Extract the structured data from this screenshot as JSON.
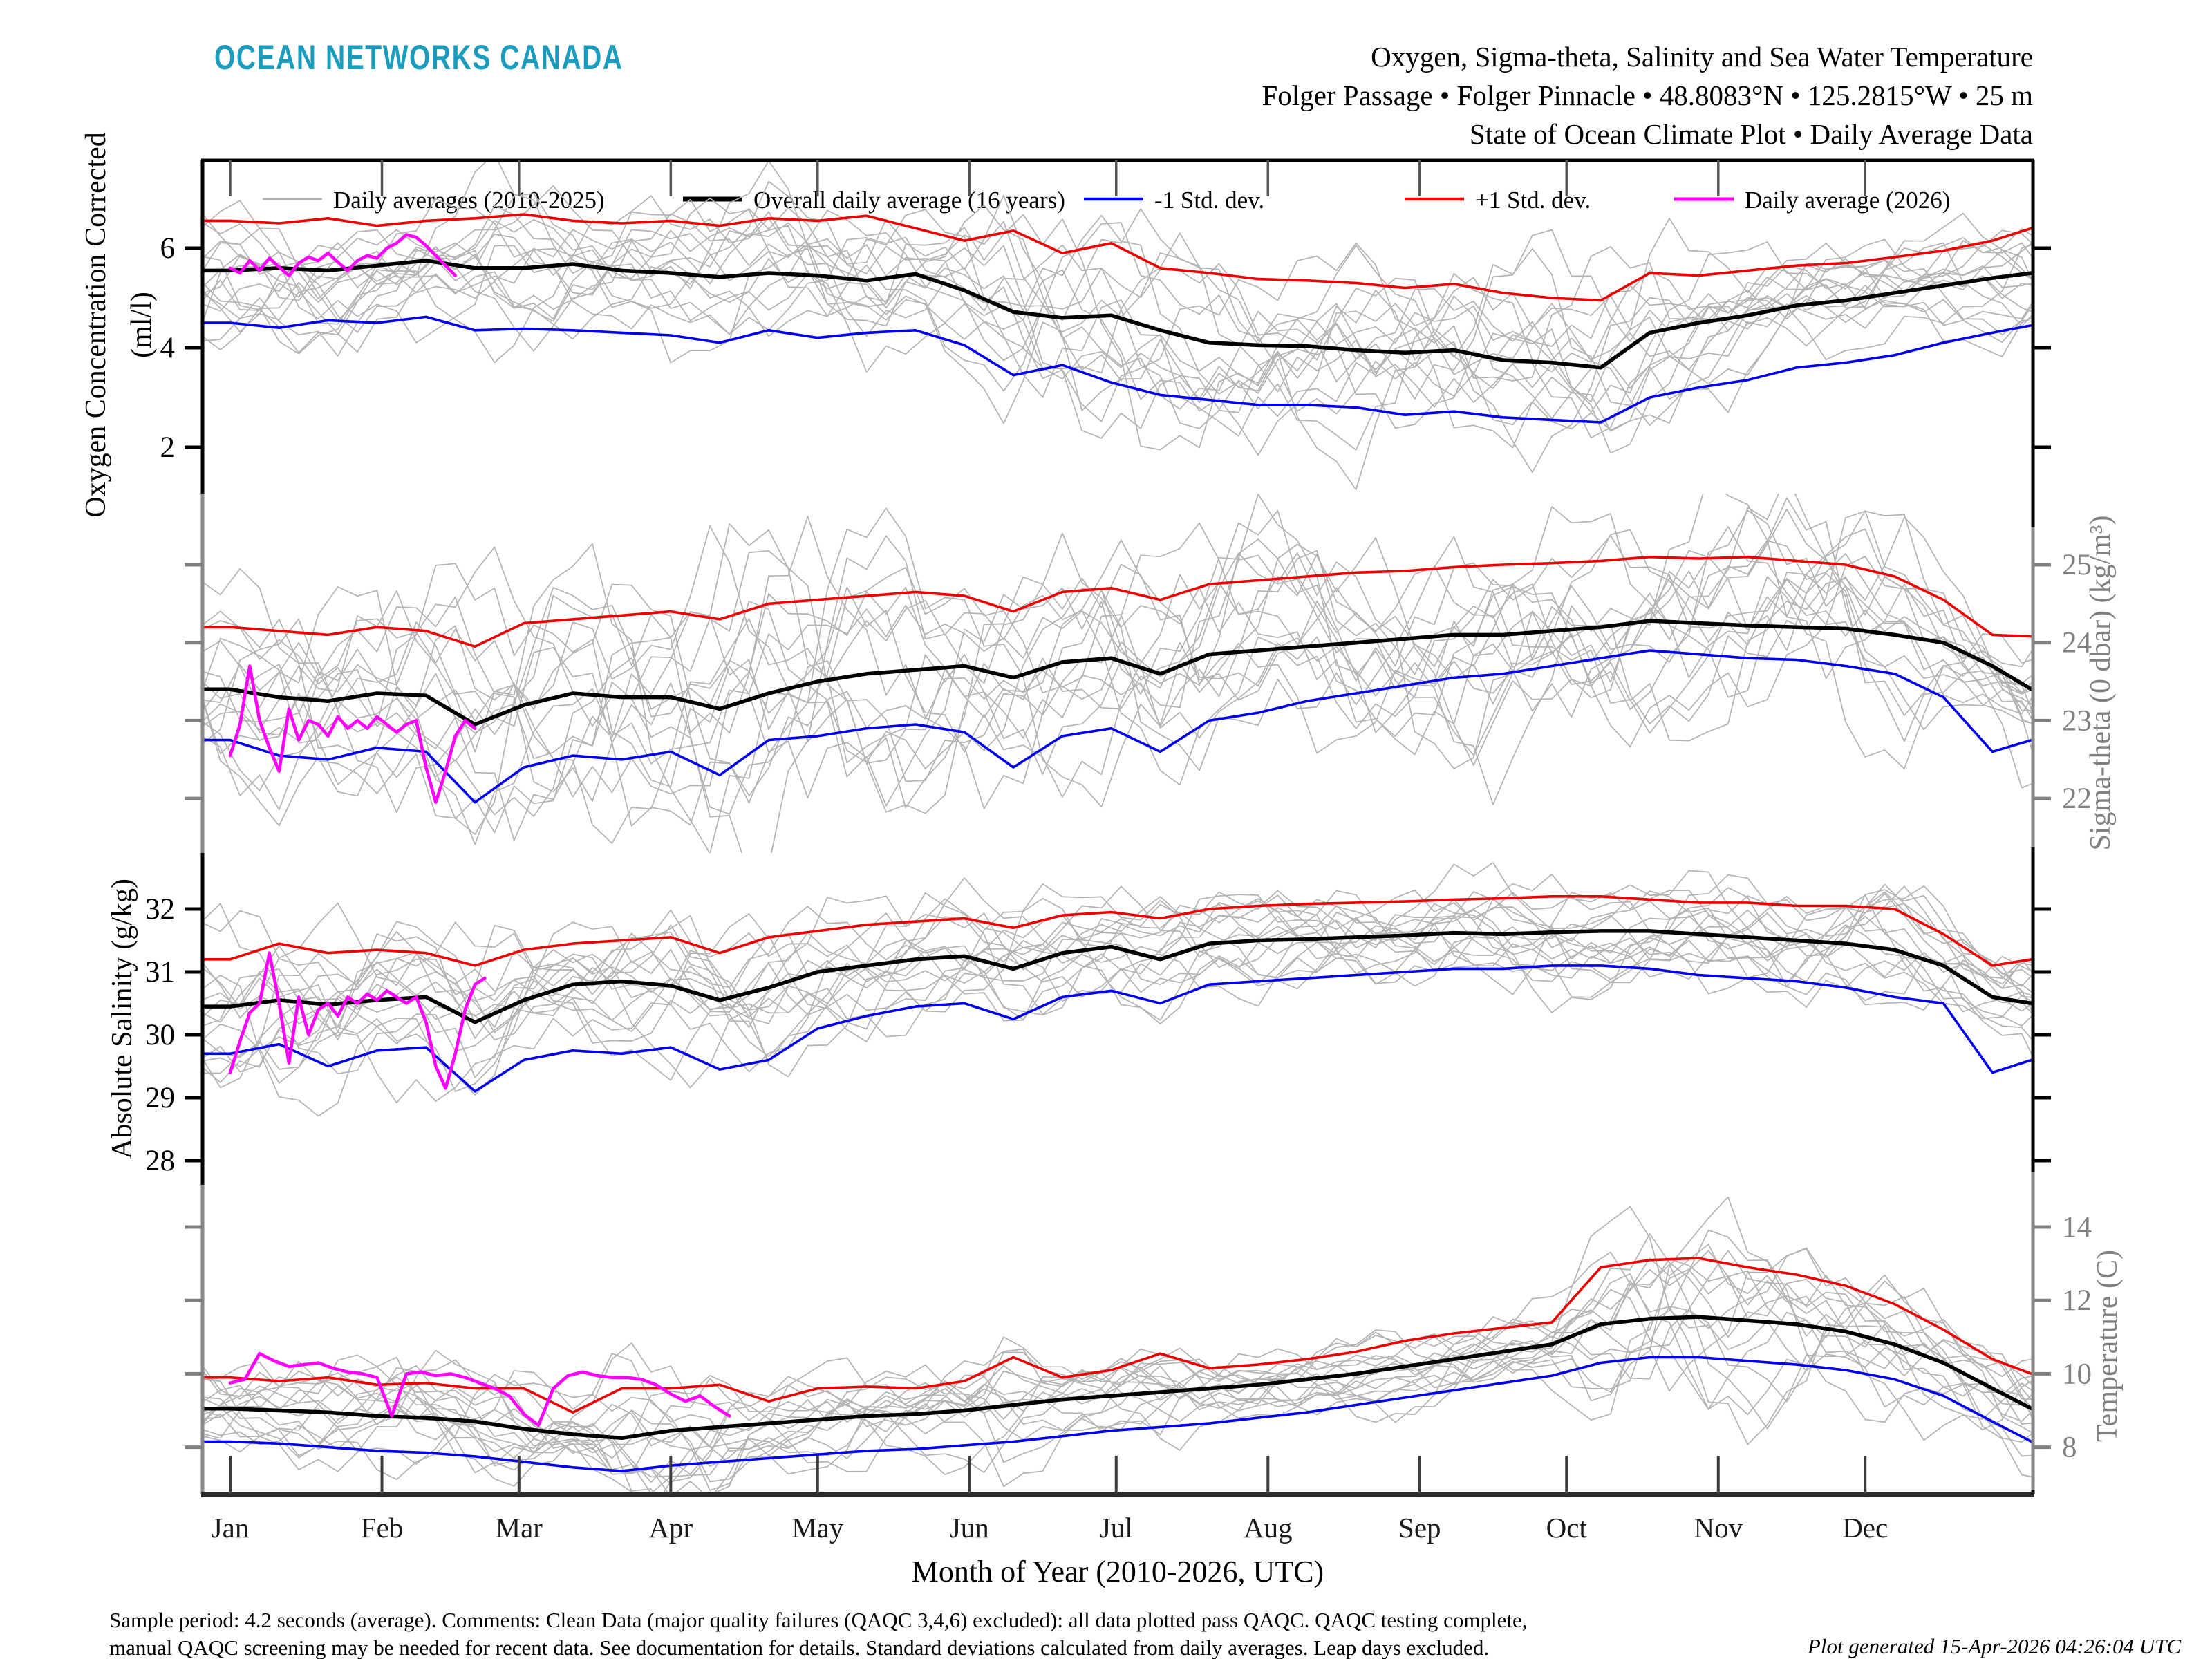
{
  "header": {
    "logo": "OCEAN NETWORKS CANADA",
    "title_line1": "Oxygen, Sigma-theta, Salinity and Sea Water Temperature",
    "title_line2": "Folger Passage • Folger Pinnacle • 48.8083°N • 125.2815°W • 25 m",
    "title_line3": "State of Ocean Climate Plot • Daily Average Data"
  },
  "footer": {
    "note_line1": "Sample period: 4.2 seconds (average).  Comments: Clean Data (major quality failures (QAQC 3,4,6) excluded): all data plotted pass QAQC.  QAQC testing complete,",
    "note_line2": "manual QAQC screening may be needed for recent data.  See documentation for details.  Standard deviations calculated from daily averages.  Leap days excluded.",
    "generated": "Plot generated 15-Apr-2026 04:26:04 UTC"
  },
  "colors": {
    "logo_teal": "#1B9BBE",
    "gray_years": "#b3b3b3",
    "mean_black": "#000000",
    "minus_sd_blue": "#0000ee",
    "plus_sd_red": "#ee0000",
    "current_magenta": "#ff00ff",
    "axis_gray": "#808080",
    "month_tick": "#3c3c3c",
    "bottom_spine": "#2b2b2b"
  },
  "legend": [
    {
      "label": "Daily averages (2010-2025)",
      "color": "#b3b3b3",
      "width": 3
    },
    {
      "label": "Overall daily average (16 years)",
      "color": "#000000",
      "width": 7
    },
    {
      "label": "-1 Std. dev.",
      "color": "#0000ee",
      "width": 4.5
    },
    {
      "label": "+1 Std. dev.",
      "color": "#ee0000",
      "width": 4.5
    },
    {
      "label": "Daily average (2026)",
      "color": "#ff00ff",
      "width": 5
    }
  ],
  "chart_data": {
    "type": "line",
    "title": "Oxygen, Sigma-theta, Salinity and Sea Water Temperature — State of Ocean Climate Plot — Daily Average Data",
    "background_years": {
      "label": "Daily averages (2010-2025)",
      "count": 16
    },
    "x_axis": {
      "label": "Month of Year (2010-2026, UTC)",
      "months": [
        "Jan",
        "Feb",
        "Mar",
        "Apr",
        "May",
        "Jun",
        "Jul",
        "Aug",
        "Sep",
        "Oct",
        "Nov",
        "Dec"
      ],
      "month_start_days": [
        0,
        31,
        59,
        90,
        120,
        151,
        181,
        212,
        243,
        273,
        304,
        334
      ],
      "day_span": [
        -6,
        370
      ]
    },
    "series_days": [
      0,
      10,
      20,
      30,
      40,
      50,
      60,
      70,
      80,
      90,
      100,
      110,
      120,
      130,
      140,
      150,
      160,
      170,
      180,
      190,
      200,
      210,
      220,
      230,
      240,
      250,
      260,
      270,
      280,
      290,
      300,
      310,
      320,
      330,
      340,
      350,
      360,
      368
    ],
    "panels": [
      {
        "id": "oxygen",
        "ylabel_line1": "Oxygen Concentration Corrected",
        "ylabel_line2": "(ml/l)",
        "label_side": "left",
        "axis_color": "#000000",
        "ylim": [
          1.2,
          7.6
        ],
        "ticks": [
          {
            "v": 6,
            "label": "6"
          },
          {
            "v": 4,
            "label": "4"
          },
          {
            "v": 2,
            "label": "2"
          }
        ],
        "mean": [
          5.55,
          5.6,
          5.55,
          5.65,
          5.75,
          5.6,
          5.6,
          5.68,
          5.55,
          5.5,
          5.42,
          5.5,
          5.45,
          5.35,
          5.48,
          5.15,
          4.72,
          4.6,
          4.65,
          4.35,
          4.1,
          4.05,
          4.03,
          3.95,
          3.9,
          3.95,
          3.75,
          3.7,
          3.6,
          4.3,
          4.5,
          4.65,
          4.85,
          4.95,
          5.1,
          5.25,
          5.4,
          5.5
        ],
        "plus_sd": [
          6.55,
          6.5,
          6.6,
          6.45,
          6.55,
          6.6,
          6.68,
          6.55,
          6.5,
          6.55,
          6.45,
          6.6,
          6.55,
          6.65,
          6.4,
          6.15,
          6.35,
          5.9,
          6.1,
          5.6,
          5.5,
          5.38,
          5.35,
          5.3,
          5.2,
          5.28,
          5.1,
          5.0,
          4.95,
          5.5,
          5.45,
          5.55,
          5.65,
          5.7,
          5.82,
          5.95,
          6.15,
          6.4
        ],
        "minus_sd": [
          4.5,
          4.4,
          4.55,
          4.5,
          4.62,
          4.35,
          4.38,
          4.35,
          4.3,
          4.25,
          4.1,
          4.35,
          4.2,
          4.3,
          4.35,
          4.05,
          3.45,
          3.65,
          3.3,
          3.05,
          2.95,
          2.85,
          2.85,
          2.8,
          2.65,
          2.72,
          2.6,
          2.55,
          2.5,
          3.0,
          3.2,
          3.35,
          3.6,
          3.7,
          3.85,
          4.1,
          4.3,
          4.45
        ],
        "current_2026": {
          "day_step": 2,
          "day_start": 0,
          "values": [
            5.6,
            5.5,
            5.75,
            5.55,
            5.8,
            5.62,
            5.45,
            5.7,
            5.82,
            5.75,
            5.9,
            5.72,
            5.55,
            5.75,
            5.85,
            5.8,
            6.0,
            6.1,
            6.27,
            6.22,
            6.05,
            5.85,
            5.65,
            5.45
          ]
        }
      },
      {
        "id": "sigma_theta",
        "ylabel_line1": "Sigma-theta (0 dbar) (kg/m³)",
        "ylabel_line2": "",
        "label_side": "right",
        "axis_color": "#808080",
        "ylim": [
          21.6,
          25.6
        ],
        "ticks": [
          {
            "v": 25,
            "label": "25"
          },
          {
            "v": 24,
            "label": "24"
          },
          {
            "v": 23,
            "label": "23"
          },
          {
            "v": 22,
            "label": "22"
          }
        ],
        "mean": [
          23.4,
          23.3,
          23.25,
          23.35,
          23.32,
          22.95,
          23.2,
          23.35,
          23.3,
          23.3,
          23.15,
          23.35,
          23.5,
          23.6,
          23.65,
          23.7,
          23.55,
          23.75,
          23.8,
          23.6,
          23.85,
          23.9,
          23.95,
          24.0,
          24.05,
          24.1,
          24.1,
          24.15,
          24.2,
          24.28,
          24.25,
          24.22,
          24.2,
          24.18,
          24.1,
          24.0,
          23.7,
          23.4
        ],
        "plus_sd": [
          24.2,
          24.15,
          24.1,
          24.2,
          24.15,
          23.95,
          24.25,
          24.3,
          24.35,
          24.4,
          24.3,
          24.5,
          24.55,
          24.6,
          24.65,
          24.6,
          24.4,
          24.65,
          24.7,
          24.55,
          24.75,
          24.8,
          24.85,
          24.9,
          24.92,
          24.97,
          25.0,
          25.02,
          25.05,
          25.1,
          25.08,
          25.1,
          25.05,
          25.0,
          24.85,
          24.55,
          24.1,
          24.08
        ],
        "minus_sd": [
          22.75,
          22.55,
          22.5,
          22.65,
          22.6,
          21.95,
          22.4,
          22.55,
          22.5,
          22.6,
          22.3,
          22.75,
          22.8,
          22.9,
          22.95,
          22.85,
          22.4,
          22.8,
          22.9,
          22.6,
          23.0,
          23.1,
          23.25,
          23.35,
          23.45,
          23.55,
          23.6,
          23.7,
          23.8,
          23.9,
          23.85,
          23.8,
          23.78,
          23.7,
          23.6,
          23.3,
          22.6,
          22.75
        ],
        "current_2026": {
          "day_step": 2,
          "day_start": 0,
          "values": [
            22.55,
            22.95,
            23.7,
            23.0,
            22.65,
            22.35,
            23.15,
            22.75,
            23.0,
            22.95,
            22.8,
            23.05,
            22.9,
            23.0,
            22.9,
            23.05,
            22.95,
            22.85,
            22.95,
            23.0,
            22.4,
            21.95,
            22.35,
            22.8,
            23.0,
            22.9
          ]
        }
      },
      {
        "id": "salinity",
        "ylabel_line1": "Absolute Salinity (g/kg)",
        "ylabel_line2": "",
        "label_side": "left",
        "axis_color": "#000000",
        "ylim": [
          27.6,
          32.85
        ],
        "ticks": [
          {
            "v": 32,
            "label": "32"
          },
          {
            "v": 31,
            "label": "31"
          },
          {
            "v": 30,
            "label": "30"
          },
          {
            "v": 29,
            "label": "29"
          },
          {
            "v": 28,
            "label": "28"
          }
        ],
        "mean": [
          30.45,
          30.55,
          30.48,
          30.55,
          30.6,
          30.2,
          30.55,
          30.8,
          30.85,
          30.78,
          30.55,
          30.75,
          31.0,
          31.1,
          31.2,
          31.25,
          31.05,
          31.3,
          31.4,
          31.2,
          31.45,
          31.5,
          31.52,
          31.55,
          31.58,
          31.62,
          31.6,
          31.63,
          31.65,
          31.65,
          31.6,
          31.55,
          31.5,
          31.45,
          31.35,
          31.1,
          30.6,
          30.5
        ],
        "plus_sd": [
          31.2,
          31.45,
          31.3,
          31.35,
          31.3,
          31.1,
          31.35,
          31.45,
          31.5,
          31.55,
          31.3,
          31.55,
          31.65,
          31.75,
          31.8,
          31.85,
          31.7,
          31.9,
          31.95,
          31.85,
          32.0,
          32.05,
          32.08,
          32.1,
          32.12,
          32.15,
          32.17,
          32.2,
          32.2,
          32.15,
          32.1,
          32.1,
          32.05,
          32.05,
          32.0,
          31.6,
          31.1,
          31.2
        ],
        "minus_sd": [
          29.7,
          29.85,
          29.5,
          29.75,
          29.8,
          29.1,
          29.6,
          29.75,
          29.7,
          29.8,
          29.45,
          29.6,
          30.1,
          30.3,
          30.45,
          30.5,
          30.25,
          30.6,
          30.7,
          30.5,
          30.8,
          30.85,
          30.9,
          30.95,
          31.0,
          31.05,
          31.05,
          31.1,
          31.1,
          31.05,
          30.95,
          30.9,
          30.85,
          30.75,
          30.6,
          30.5,
          29.4,
          29.6
        ],
        "current_2026": {
          "day_step": 2,
          "day_start": 0,
          "values": [
            29.4,
            29.9,
            30.35,
            30.5,
            31.3,
            30.5,
            29.55,
            30.6,
            30.0,
            30.4,
            30.5,
            30.3,
            30.6,
            30.5,
            30.65,
            30.55,
            30.7,
            30.6,
            30.5,
            30.6,
            30.2,
            29.5,
            29.15,
            29.7,
            30.4,
            30.8,
            30.9
          ]
        }
      },
      {
        "id": "temperature",
        "ylabel_line1": "Temperature (C)",
        "ylabel_line2": "",
        "label_side": "right",
        "axis_color": "#808080",
        "ylim": [
          6.8,
          14.9
        ],
        "ticks": [
          {
            "v": 14,
            "label": "14"
          },
          {
            "v": 12,
            "label": "12"
          },
          {
            "v": 10,
            "label": "10"
          },
          {
            "v": 8,
            "label": "8"
          }
        ],
        "mean": [
          9.05,
          9.0,
          8.95,
          8.85,
          8.8,
          8.7,
          8.5,
          8.35,
          8.25,
          8.45,
          8.55,
          8.65,
          8.75,
          8.85,
          8.9,
          9.0,
          9.15,
          9.3,
          9.4,
          9.5,
          9.6,
          9.7,
          9.85,
          10.0,
          10.2,
          10.4,
          10.6,
          10.8,
          11.35,
          11.5,
          11.55,
          11.45,
          11.35,
          11.15,
          10.8,
          10.3,
          9.6,
          9.05
        ],
        "plus_sd": [
          9.9,
          9.8,
          9.9,
          9.7,
          9.75,
          9.6,
          9.6,
          8.95,
          9.6,
          9.6,
          9.7,
          9.25,
          9.6,
          9.65,
          9.6,
          9.8,
          10.45,
          9.9,
          10.1,
          10.55,
          10.15,
          10.25,
          10.4,
          10.6,
          10.9,
          11.1,
          11.25,
          11.4,
          12.9,
          13.1,
          13.15,
          12.9,
          12.7,
          12.4,
          11.9,
          11.2,
          10.4,
          10.0
        ],
        "minus_sd": [
          8.15,
          8.1,
          8.0,
          7.9,
          7.85,
          7.75,
          7.6,
          7.45,
          7.35,
          7.5,
          7.6,
          7.7,
          7.8,
          7.9,
          7.95,
          8.05,
          8.15,
          8.3,
          8.45,
          8.55,
          8.65,
          8.8,
          8.95,
          9.15,
          9.35,
          9.55,
          9.75,
          9.95,
          10.3,
          10.45,
          10.45,
          10.35,
          10.25,
          10.1,
          9.85,
          9.4,
          8.7,
          8.15
        ],
        "current_2026": {
          "day_step": 3,
          "day_start": 0,
          "values": [
            9.75,
            9.85,
            10.55,
            10.35,
            10.2,
            10.25,
            10.3,
            10.15,
            10.05,
            10.0,
            9.9,
            8.85,
            10.0,
            10.05,
            9.95,
            10.0,
            9.9,
            9.75,
            9.6,
            9.4,
            8.9,
            8.6,
            9.6,
            9.95,
            10.05,
            9.95,
            9.9,
            9.9,
            9.85,
            9.7,
            9.45,
            9.25,
            9.4,
            9.1,
            8.85
          ]
        }
      }
    ]
  }
}
